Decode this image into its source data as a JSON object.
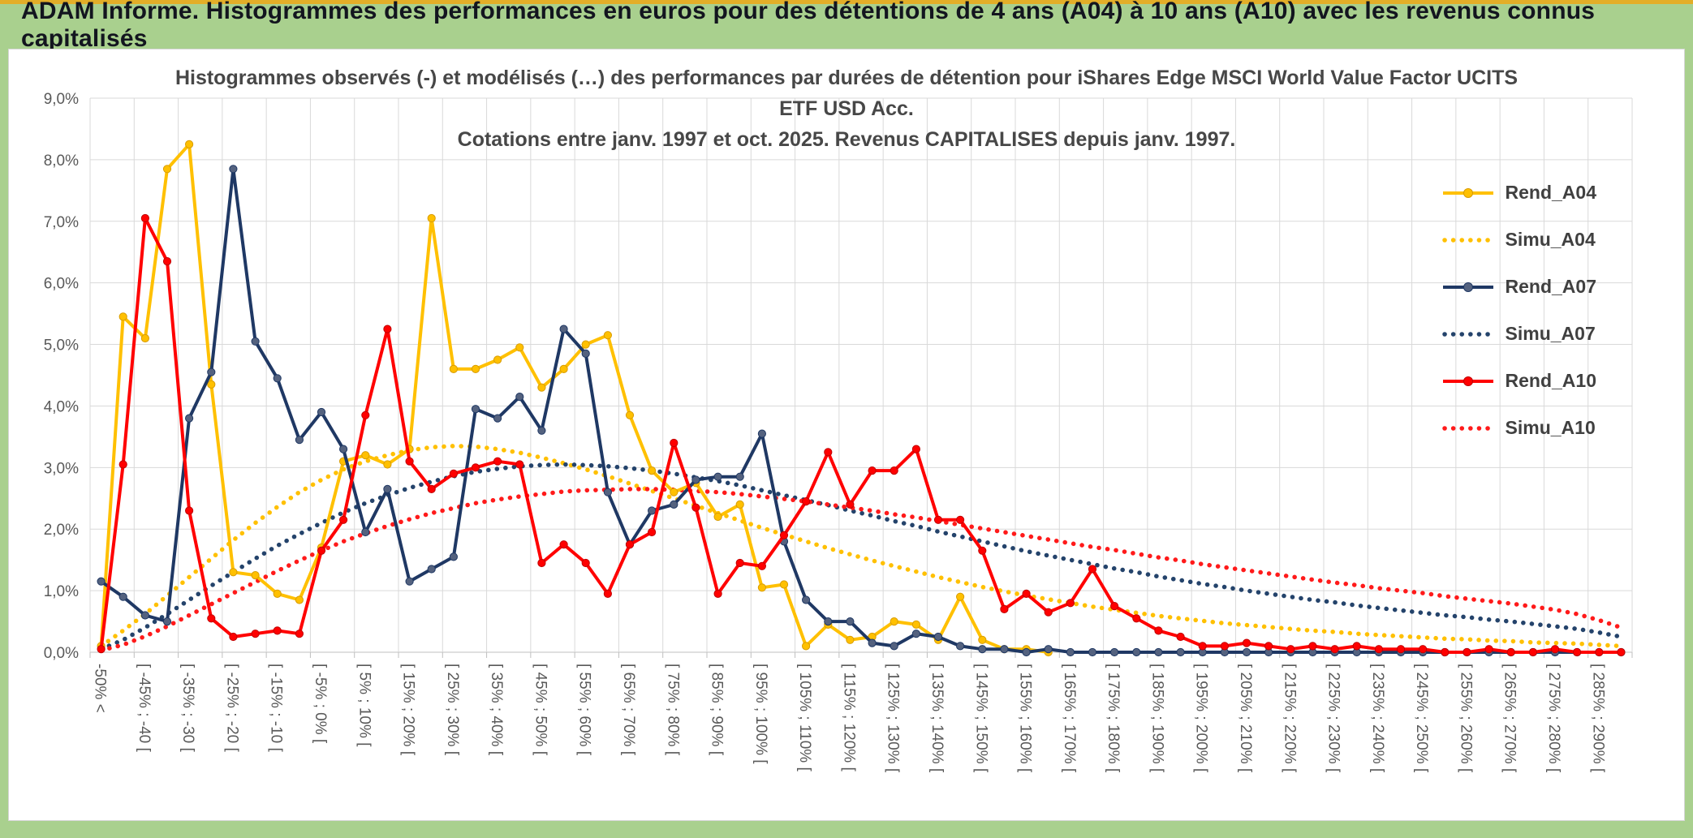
{
  "banner": {
    "title": "ADAM Informe. Histogrammes des performances en euros pour des détentions de 4 ans (A04) à 10 ans (A10) avec les revenus connus capitalisés"
  },
  "chart_data": {
    "type": "line",
    "title": "Histogrammes observés (-) et modélisés (…) des performances par durées de détention pour iShares Edge MSCI World Value Factor UCITS ETF USD Acc.",
    "subtitle": "Cotations entre janv. 1997 et oct. 2025. Revenus CAPITALISES depuis janv. 1997.",
    "xlabel": "",
    "ylabel": "",
    "ylim": [
      0,
      9
    ],
    "ytick_step": 1,
    "grid": true,
    "legend_position": "right",
    "points_per_label": 2,
    "y_tick_labels": [
      "0,0%",
      "1,0%",
      "2,0%",
      "3,0%",
      "4,0%",
      "5,0%",
      "6,0%",
      "7,0%",
      "8,0%",
      "9,0%"
    ],
    "x_axis_labels": [
      "-50% <",
      "[ -45% ; -40 [",
      "[ -35% ; -30 [",
      "[ -25% ; -20 [",
      "[ -15% ; -10 [",
      "[ -5% ; 0% [",
      "[ 5% ; 10% [",
      "[ 15% ; 20% [",
      "[ 25% ; 30% [",
      "[ 35% ; 40% [",
      "[ 45% ; 50% [",
      "[ 55% ; 60% [",
      "[ 65% ; 70% [",
      "[ 75% ; 80% [",
      "[ 85% ; 90% [",
      "[ 95% ; 100% [",
      "[ 105% ; 110% [",
      "[ 115% ; 120% [",
      "[ 125% ; 130% [",
      "[ 135% ; 140% [",
      "[ 145% ; 150% [",
      "[ 155% ; 160% [",
      "[ 165% ; 170% [",
      "[ 175% ; 180% [",
      "[ 185% ; 190% [",
      "[ 195% ; 200% [",
      "[ 205% ; 210% [",
      "[ 215% ; 220% [",
      "[ 225% ; 230% [",
      "[ 235% ; 240% [",
      "[ 245% ; 250% [",
      "[ 255% ; 260% [",
      "[ 265% ; 270% [",
      "[ 275% ; 280% [",
      "[ 285% ; 290% ["
    ],
    "series": [
      {
        "name": "Rend_A04",
        "style": "solid-markers",
        "color": "#FFC000",
        "marker": "#FFC000",
        "marker_edge": "#D89C00",
        "values": [
          0.1,
          5.45,
          5.1,
          7.85,
          8.25,
          4.35,
          1.3,
          1.25,
          0.95,
          0.85,
          1.7,
          3.1,
          3.2,
          3.05,
          3.3,
          7.05,
          4.6,
          4.6,
          4.75,
          4.95,
          4.3,
          4.6,
          5.0,
          5.15,
          3.85,
          2.95,
          2.6,
          2.75,
          2.2,
          2.4,
          1.05,
          1.1,
          0.1,
          0.45,
          0.2,
          0.25,
          0.5,
          0.45,
          0.2,
          0.9,
          0.2,
          0.05,
          0.05,
          0,
          null,
          null,
          null,
          null,
          null,
          null,
          null,
          null,
          null,
          null,
          null,
          null,
          null,
          null,
          null,
          null,
          null,
          null,
          null,
          null,
          null,
          null,
          null,
          null,
          null,
          null
        ]
      },
      {
        "name": "Simu_A04",
        "style": "dotted",
        "color": "#FFC000",
        "values": [
          0.1,
          0.35,
          0.62,
          0.92,
          1.22,
          1.52,
          1.82,
          2.1,
          2.36,
          2.6,
          2.8,
          2.97,
          3.1,
          3.2,
          3.28,
          3.33,
          3.35,
          3.34,
          3.3,
          3.24,
          3.16,
          3.07,
          2.97,
          2.86,
          2.74,
          2.62,
          2.5,
          2.38,
          2.26,
          2.14,
          2.02,
          1.91,
          1.8,
          1.69,
          1.59,
          1.49,
          1.4,
          1.31,
          1.22,
          1.14,
          1.06,
          0.99,
          0.92,
          0.86,
          0.8,
          0.74,
          0.69,
          0.64,
          0.59,
          0.55,
          0.51,
          0.47,
          0.44,
          0.41,
          0.38,
          0.35,
          0.33,
          0.3,
          0.28,
          0.26,
          0.24,
          0.22,
          0.21,
          0.19,
          0.18,
          0.16,
          0.15,
          0.14,
          0.12,
          0.1
        ]
      },
      {
        "name": "Rend_A07",
        "style": "solid-markers",
        "color": "#1F3864",
        "marker": "#54627F",
        "marker_edge": "#1F3864",
        "values": [
          1.15,
          0.9,
          0.6,
          0.5,
          3.8,
          4.55,
          7.85,
          5.05,
          4.45,
          3.45,
          3.9,
          3.3,
          1.95,
          2.65,
          1.15,
          1.35,
          1.55,
          3.95,
          3.8,
          4.15,
          3.6,
          5.25,
          4.85,
          2.6,
          1.75,
          2.3,
          2.4,
          2.8,
          2.85,
          2.85,
          3.55,
          1.8,
          0.85,
          0.5,
          0.5,
          0.15,
          0.1,
          0.3,
          0.25,
          0.1,
          0.05,
          0.05,
          0,
          0.05,
          0,
          0,
          0,
          0,
          0,
          0,
          0,
          0,
          0,
          0,
          0,
          0,
          0,
          0,
          0,
          0,
          0,
          0,
          0,
          0,
          0,
          0,
          0,
          0,
          0,
          0
        ]
      },
      {
        "name": "Simu_A07",
        "style": "dotted",
        "color": "#24436B",
        "values": [
          0.05,
          0.2,
          0.4,
          0.62,
          0.85,
          1.08,
          1.3,
          1.52,
          1.73,
          1.92,
          2.1,
          2.27,
          2.42,
          2.55,
          2.67,
          2.77,
          2.86,
          2.93,
          2.98,
          3.02,
          3.04,
          3.05,
          3.04,
          3.02,
          2.99,
          2.95,
          2.9,
          2.84,
          2.78,
          2.71,
          2.63,
          2.55,
          2.47,
          2.39,
          2.3,
          2.22,
          2.13,
          2.05,
          1.96,
          1.88,
          1.8,
          1.72,
          1.64,
          1.57,
          1.5,
          1.43,
          1.36,
          1.3,
          1.23,
          1.17,
          1.11,
          1.06,
          1.0,
          0.95,
          0.9,
          0.85,
          0.81,
          0.76,
          0.72,
          0.68,
          0.64,
          0.6,
          0.57,
          0.53,
          0.5,
          0.46,
          0.42,
          0.38,
          0.32,
          0.25
        ]
      },
      {
        "name": "Rend_A10",
        "style": "solid-markers",
        "color": "#FF0000",
        "marker": "#FF0000",
        "marker_edge": "#C00000",
        "values": [
          0.05,
          3.05,
          7.05,
          6.35,
          2.3,
          0.55,
          0.25,
          0.3,
          0.35,
          0.3,
          1.65,
          2.15,
          3.85,
          5.25,
          3.1,
          2.65,
          2.9,
          3.0,
          3.1,
          3.05,
          1.45,
          1.75,
          1.45,
          0.95,
          1.75,
          1.95,
          3.4,
          2.35,
          0.95,
          1.45,
          1.4,
          1.9,
          2.45,
          3.25,
          2.4,
          2.95,
          2.95,
          3.3,
          2.15,
          2.15,
          1.65,
          0.7,
          0.95,
          0.65,
          0.8,
          1.35,
          0.75,
          0.55,
          0.35,
          0.25,
          0.1,
          0.1,
          0.15,
          0.1,
          0.05,
          0.1,
          0.05,
          0.1,
          0.05,
          0.05,
          0.05,
          0,
          0,
          0.05,
          0,
          0,
          0.05,
          0,
          0,
          0
        ]
      },
      {
        "name": "Simu_A10",
        "style": "dotted",
        "color": "#FF1A1A",
        "values": [
          0.03,
          0.12,
          0.26,
          0.42,
          0.6,
          0.78,
          0.96,
          1.14,
          1.32,
          1.49,
          1.65,
          1.8,
          1.93,
          2.05,
          2.16,
          2.26,
          2.34,
          2.42,
          2.48,
          2.53,
          2.57,
          2.61,
          2.63,
          2.64,
          2.65,
          2.65,
          2.64,
          2.62,
          2.6,
          2.57,
          2.53,
          2.49,
          2.45,
          2.4,
          2.35,
          2.3,
          2.24,
          2.19,
          2.13,
          2.07,
          2.01,
          1.95,
          1.89,
          1.83,
          1.77,
          1.71,
          1.66,
          1.6,
          1.54,
          1.49,
          1.43,
          1.38,
          1.33,
          1.28,
          1.23,
          1.18,
          1.13,
          1.09,
          1.04,
          1.0,
          0.96,
          0.91,
          0.87,
          0.83,
          0.79,
          0.74,
          0.69,
          0.62,
          0.52,
          0.4
        ]
      }
    ]
  }
}
